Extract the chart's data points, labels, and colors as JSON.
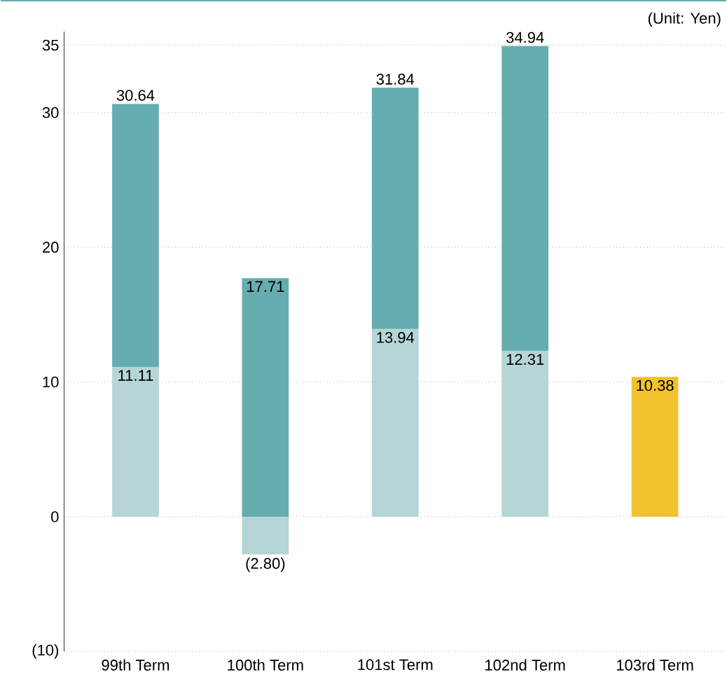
{
  "chart_data": {
    "type": "bar",
    "stacked": true,
    "annotations": [
      "(Unit: Yen)"
    ],
    "categories": [
      "99th Term",
      "100th Term",
      "101st Term",
      "102nd Term",
      "103rd Term"
    ],
    "series": [
      {
        "color": "#b5d5d6",
        "values": [
          11.11,
          -2.8,
          13.94,
          12.31,
          null
        ],
        "value_labels": [
          "11.11",
          "(2.80)",
          "13.94",
          "12.31",
          null
        ]
      },
      {
        "colors": [
          "#66adb0",
          "#66adb0",
          "#66adb0",
          "#66adb0",
          "#f2c12e"
        ],
        "values": [
          19.53,
          17.71,
          17.9,
          22.63,
          10.38
        ],
        "value_labels": [
          null,
          "17.71",
          null,
          null,
          "10.38"
        ]
      }
    ],
    "totals": [
      "30.64",
      null,
      "31.84",
      "34.94",
      null
    ],
    "ylim": [
      -10,
      36
    ],
    "yticks": [
      {
        "value": -10,
        "label": "(10)"
      },
      0,
      10,
      20,
      30,
      35
    ],
    "grid": "y"
  }
}
